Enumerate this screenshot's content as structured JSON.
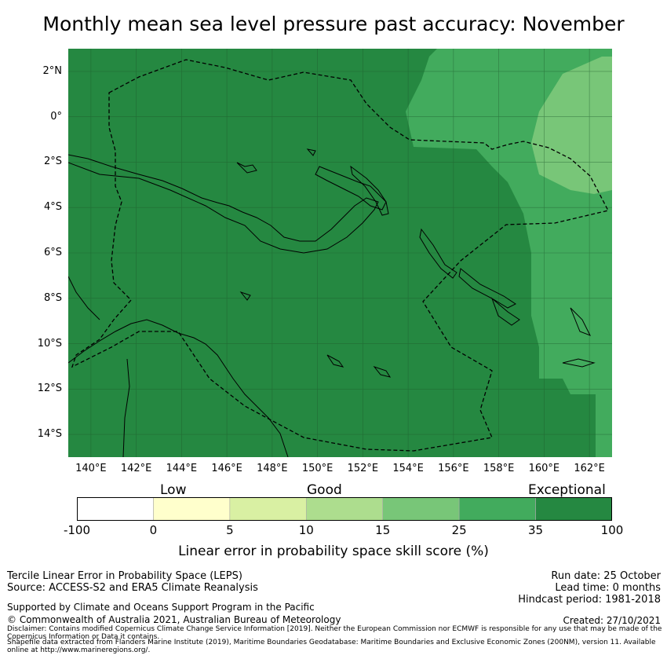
{
  "title": "Monthly mean sea level pressure past accuracy: November",
  "map": {
    "lat_labels": [
      "2°N",
      "0°",
      "2°S",
      "4°S",
      "6°S",
      "8°S",
      "10°S",
      "12°S",
      "14°S"
    ],
    "lat_values": [
      2,
      0,
      -2,
      -4,
      -6,
      -8,
      -10,
      -12,
      -14
    ],
    "lon_labels": [
      "140°E",
      "142°E",
      "144°E",
      "146°E",
      "148°E",
      "150°E",
      "152°E",
      "154°E",
      "156°E",
      "158°E",
      "160°E",
      "162°E"
    ],
    "lon_values": [
      140,
      142,
      144,
      146,
      148,
      150,
      152,
      154,
      156,
      158,
      160,
      162
    ],
    "extent": {
      "lon_min": 139,
      "lon_max": 163,
      "lat_min": -15,
      "lat_max": 3
    },
    "region_colors": {
      "exceptional": "#258841",
      "band_25_35": "#42ab5d",
      "band_15_25": "#78c678",
      "border": "#000000"
    }
  },
  "colorbar": {
    "categories": [
      {
        "label": "Low"
      },
      {
        "label": "Good"
      },
      {
        "label": "Exceptional"
      }
    ],
    "ticks": [
      "-100",
      "0",
      "5",
      "10",
      "15",
      "25",
      "35",
      "100"
    ],
    "bins": [
      {
        "from": -100,
        "to": 0,
        "color": "#ffffff"
      },
      {
        "from": 0,
        "to": 5,
        "color": "#ffffcc"
      },
      {
        "from": 5,
        "to": 10,
        "color": "#d9f0a3"
      },
      {
        "from": 10,
        "to": 15,
        "color": "#addd8e"
      },
      {
        "from": 15,
        "to": 25,
        "color": "#78c678"
      },
      {
        "from": 25,
        "to": 35,
        "color": "#42ab5d"
      },
      {
        "from": 35,
        "to": 100,
        "color": "#258841"
      }
    ],
    "label": "Linear error in probability space skill score (%)"
  },
  "footer": {
    "left1": "Tercile Linear Error in Probability Space (LEPS)",
    "left2": "Source: ACCESS-S2 and ERA5 Climate Reanalysis",
    "left3": "Supported by Climate and Oceans Support Program in the Pacific",
    "left4": "© Commonwealth of Australia 2021, Australian Bureau of Meteorology",
    "right1": "Run date: 25 October",
    "right2": "Lead time: 0 months",
    "right3": "Hindcast period: 1981-2018",
    "created": "Created: 27/10/2021",
    "disclaimer": "Disclaimer: Contains modified Copernicus Climate Change Service Information [2019]. Neither the European Commission nor ECMWF is responsible for any use that may be made of the Copernicus Information or Data it contains.",
    "shapefile": "Shapefile data extracted from Flanders Marine Institute (2019), Maritime Boundaries Geodatabase: Maritime Boundaries and Exclusive Economic Zones (200NM), version 11. Available online at http://www.marineregions.org/."
  }
}
